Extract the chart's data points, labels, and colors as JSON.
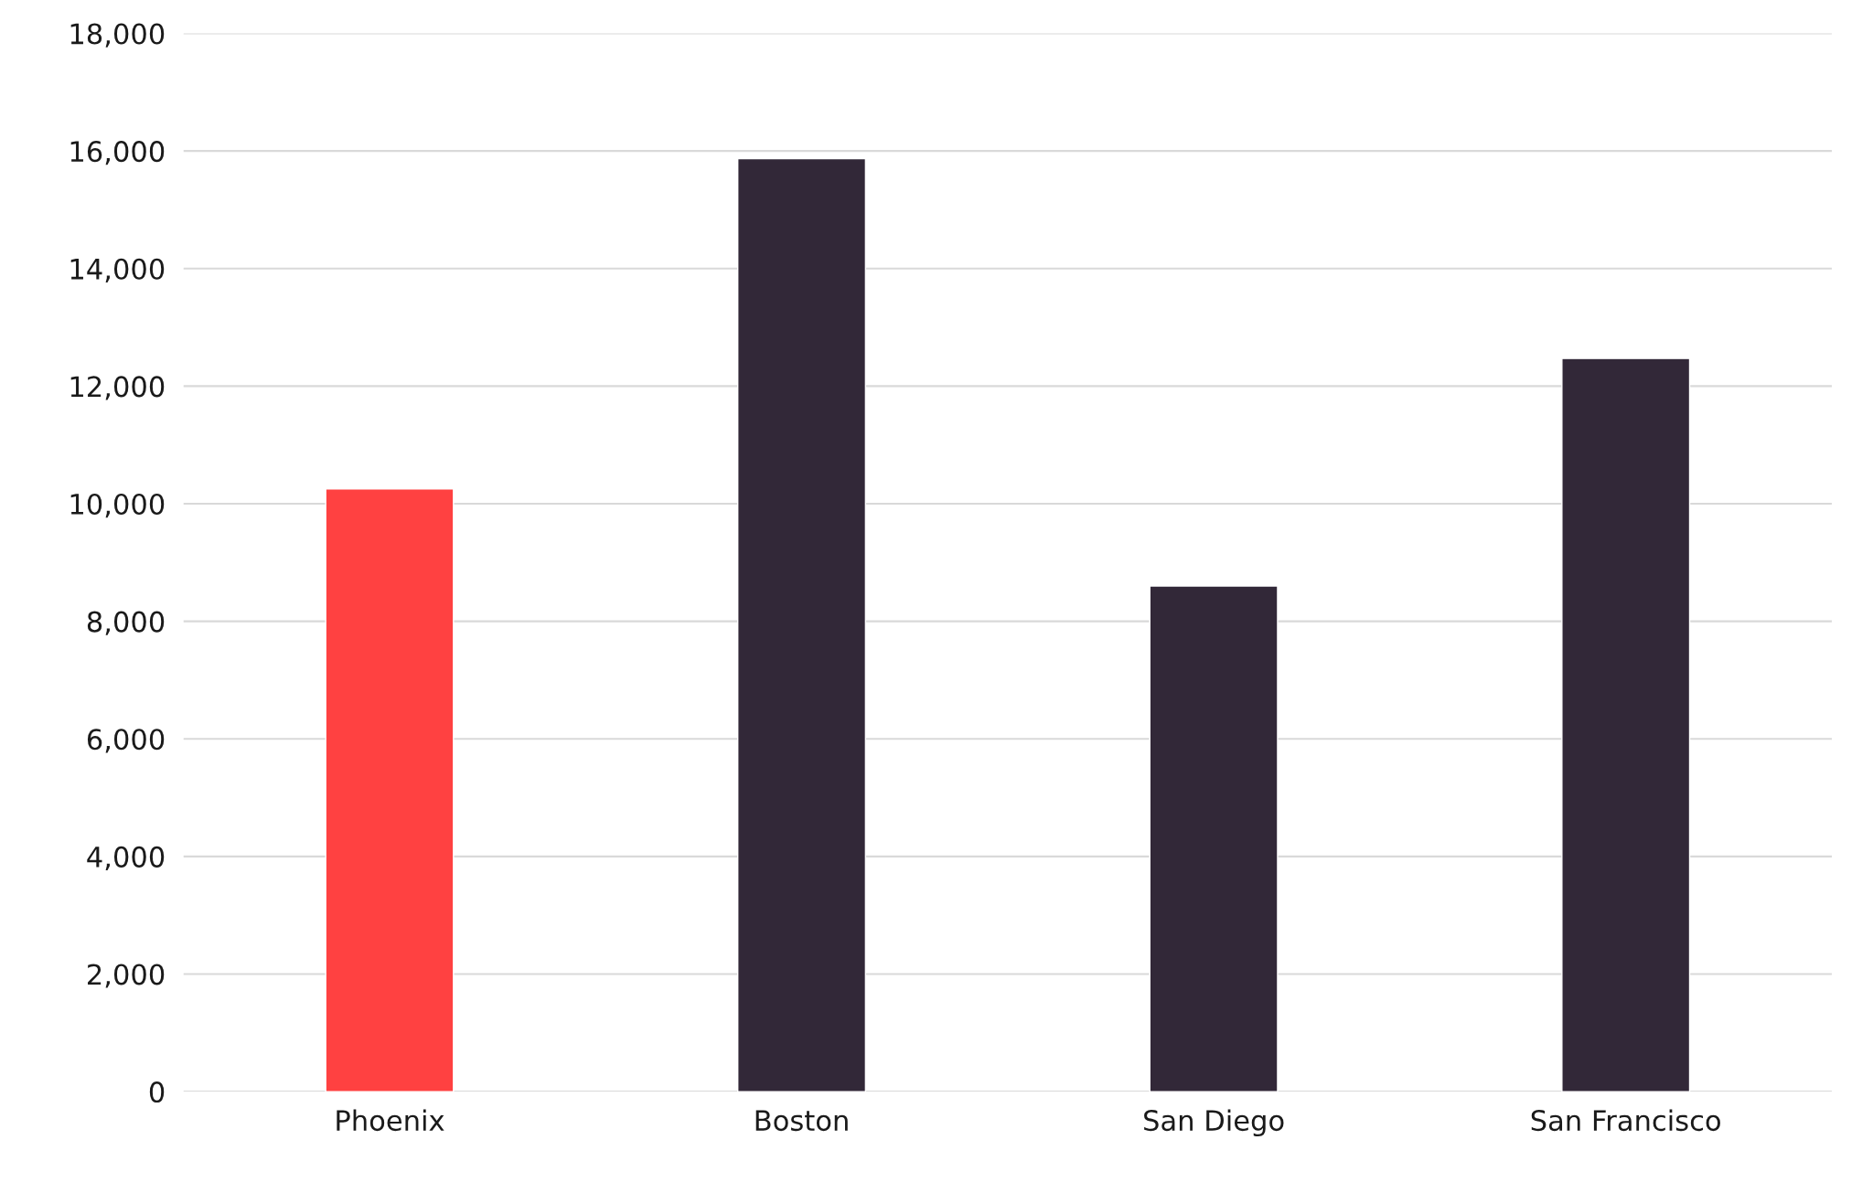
{
  "chart_data": {
    "type": "bar",
    "categories": [
      "Phoenix",
      "Boston",
      "San Diego",
      "San Francisco"
    ],
    "values": [
      10250,
      15870,
      8600,
      12470
    ],
    "colors": [
      "#ff4141",
      "#322838",
      "#322838",
      "#322838"
    ],
    "ylim": [
      0,
      18000
    ],
    "yticks": [
      {
        "value": 0,
        "label": "0"
      },
      {
        "value": 2000,
        "label": "2,000"
      },
      {
        "value": 4000,
        "label": "4,000"
      },
      {
        "value": 6000,
        "label": "6,000"
      },
      {
        "value": 8000,
        "label": "8,000"
      },
      {
        "value": 10000,
        "label": "10,000"
      },
      {
        "value": 12000,
        "label": "12,000"
      },
      {
        "value": 14000,
        "label": "14,000"
      },
      {
        "value": 16000,
        "label": "16,000"
      },
      {
        "value": 18000,
        "label": "18,000"
      }
    ],
    "grid": "y"
  }
}
